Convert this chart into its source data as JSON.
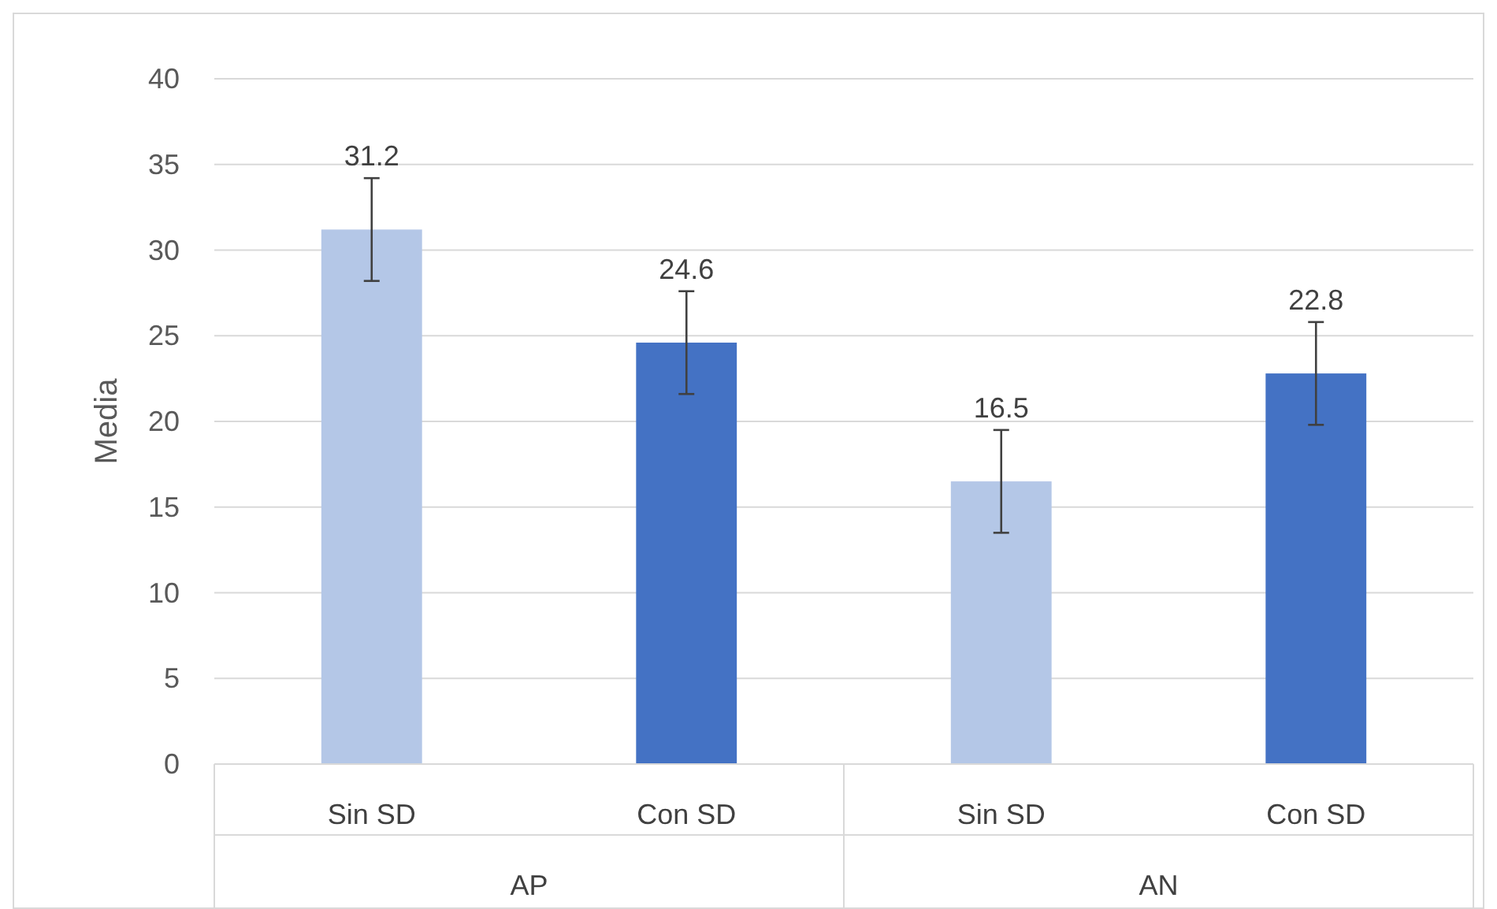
{
  "chart_data": {
    "type": "bar",
    "ylabel": "Media",
    "categories": [
      "Sin SD",
      "Con SD",
      "Sin SD",
      "Con SD"
    ],
    "values": [
      31.2,
      24.6,
      16.5,
      22.8
    ],
    "colors": [
      "#b4c7e7",
      "#4472c4",
      "#b4c7e7",
      "#4472c4"
    ],
    "errors": [
      3,
      3,
      3,
      3
    ],
    "data_labels": true,
    "annotations": [
      "AP",
      "AN"
    ],
    "ylim": [
      0,
      40
    ],
    "yticks": [
      0,
      5,
      10,
      15,
      20,
      25,
      30,
      35,
      40
    ],
    "grid": "y"
  }
}
